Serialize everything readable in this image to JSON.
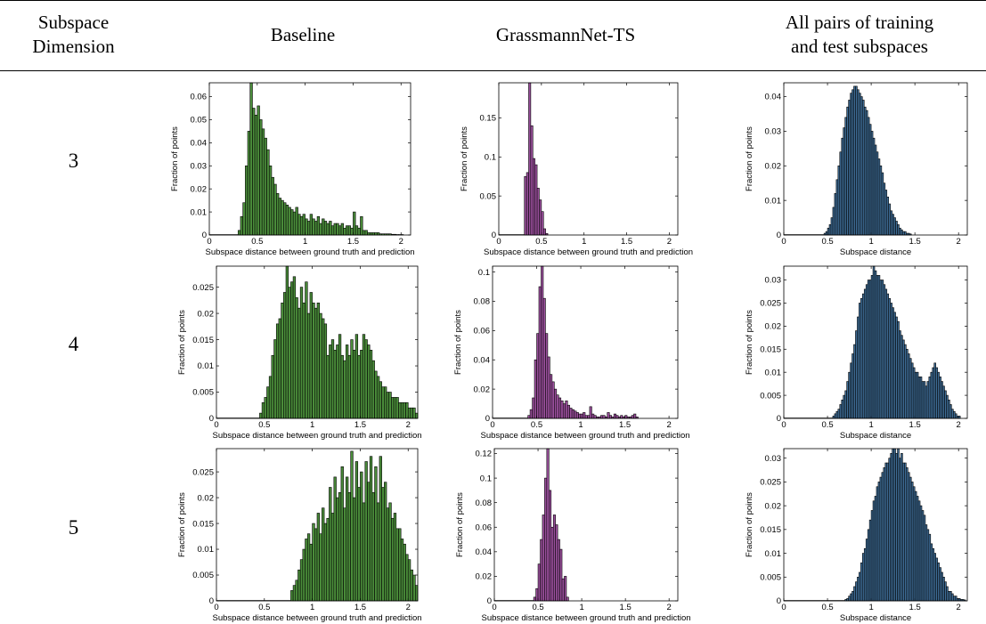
{
  "table": {
    "headers": {
      "dimension": [
        "Subspace",
        "Dimension"
      ],
      "baseline": "Baseline",
      "grassmann": "GrassmannNet-TS",
      "allpairs": [
        "All pairs of training",
        "and test subspaces"
      ]
    },
    "rows": [
      {
        "label": "3"
      },
      {
        "label": "4"
      },
      {
        "label": "5"
      }
    ]
  },
  "colors": {
    "baseline": "#4a8c3a",
    "grassmann": "#9a4f9c",
    "allpairs": "#3f6e98",
    "edge": "#000000"
  },
  "chart_data": [
    {
      "id": "b3",
      "type": "bar",
      "ylabel": "Fraction of points",
      "xlabel": "Subspace distance between ground truth and prediction",
      "xlim": [
        0,
        2.1
      ],
      "ylim": [
        0,
        0.066
      ],
      "xticks": [
        "0",
        "0.5",
        "1",
        "1.5",
        "2"
      ],
      "yticks": [
        "0",
        "0.01",
        "0.02",
        "0.03",
        "0.04",
        "0.05",
        "0.06"
      ],
      "bin_width": 0.025,
      "x": [
        0.3,
        0.325,
        0.35,
        0.375,
        0.4,
        0.425,
        0.45,
        0.475,
        0.5,
        0.525,
        0.55,
        0.575,
        0.6,
        0.625,
        0.65,
        0.675,
        0.7,
        0.725,
        0.75,
        0.775,
        0.8,
        0.825,
        0.85,
        0.875,
        0.9,
        0.925,
        0.95,
        0.975,
        1.0,
        1.025,
        1.05,
        1.075,
        1.1,
        1.125,
        1.15,
        1.175,
        1.2,
        1.225,
        1.25,
        1.275,
        1.3,
        1.325,
        1.35,
        1.375,
        1.4,
        1.425,
        1.45,
        1.475,
        1.5,
        1.525,
        1.55,
        1.575,
        1.6,
        1.625,
        1.65,
        1.675,
        1.7,
        1.725,
        1.75,
        1.775,
        1.8,
        1.825,
        1.85,
        1.875,
        1.9,
        1.925,
        1.95,
        1.975,
        2.0
      ],
      "values": [
        0.002,
        0.008,
        0.014,
        0.03,
        0.045,
        0.066,
        0.055,
        0.052,
        0.056,
        0.05,
        0.046,
        0.042,
        0.037,
        0.03,
        0.025,
        0.022,
        0.018,
        0.016,
        0.015,
        0.014,
        0.013,
        0.012,
        0.011,
        0.01,
        0.012,
        0.009,
        0.008,
        0.009,
        0.007,
        0.006,
        0.009,
        0.007,
        0.006,
        0.008,
        0.005,
        0.007,
        0.006,
        0.005,
        0.006,
        0.004,
        0.005,
        0.005,
        0.004,
        0.005,
        0.003,
        0.004,
        0.004,
        0.003,
        0.01,
        0.004,
        0.003,
        0.008,
        0.002,
        0.002,
        0.001,
        0.001,
        0.001,
        0.001,
        0.001,
        0.0005,
        0.0005,
        0.0005,
        0.0005,
        0.0005,
        0.0003,
        0.0003,
        0.0002,
        0.0002,
        0.0002
      ]
    },
    {
      "id": "g3",
      "type": "bar",
      "ylabel": "Fraction of points",
      "xlabel": "Subspace distance between ground truth and prediction",
      "xlim": [
        0,
        2.1
      ],
      "ylim": [
        0,
        0.195
      ],
      "xticks": [
        "0",
        "0.5",
        "1",
        "1.5",
        "2"
      ],
      "yticks": [
        "0",
        "0.05",
        "0.1",
        "0.15"
      ],
      "bin_width": 0.025,
      "x": [
        0.3,
        0.325,
        0.35,
        0.375,
        0.4,
        0.425,
        0.45,
        0.475,
        0.5,
        0.525,
        0.55
      ],
      "values": [
        0.075,
        0.08,
        0.195,
        0.14,
        0.098,
        0.09,
        0.06,
        0.045,
        0.03,
        0.008,
        0.002
      ]
    },
    {
      "id": "a3",
      "type": "bar",
      "ylabel": "Fraction of points",
      "xlabel": "Subspace distance",
      "xlim": [
        0,
        2.1
      ],
      "ylim": [
        0,
        0.044
      ],
      "xticks": [
        "0",
        "0.5",
        "1",
        "1.5",
        "2"
      ],
      "yticks": [
        "0",
        "0.01",
        "0.02",
        "0.03",
        "0.04"
      ],
      "bin_width": 0.02,
      "x": [
        0.46,
        0.48,
        0.5,
        0.52,
        0.54,
        0.56,
        0.58,
        0.6,
        0.62,
        0.64,
        0.66,
        0.68,
        0.7,
        0.72,
        0.74,
        0.76,
        0.78,
        0.8,
        0.82,
        0.84,
        0.86,
        0.88,
        0.9,
        0.92,
        0.94,
        0.96,
        0.98,
        1.0,
        1.02,
        1.04,
        1.06,
        1.08,
        1.1,
        1.12,
        1.14,
        1.16,
        1.18,
        1.2,
        1.22,
        1.24,
        1.26,
        1.28,
        1.3,
        1.32,
        1.34,
        1.36,
        1.38,
        1.4,
        1.42,
        1.44
      ],
      "values": [
        0.0005,
        0.001,
        0.002,
        0.003,
        0.005,
        0.008,
        0.012,
        0.016,
        0.02,
        0.024,
        0.028,
        0.031,
        0.034,
        0.037,
        0.039,
        0.041,
        0.042,
        0.043,
        0.043,
        0.042,
        0.041,
        0.04,
        0.039,
        0.037,
        0.036,
        0.034,
        0.032,
        0.03,
        0.028,
        0.026,
        0.024,
        0.022,
        0.02,
        0.018,
        0.015,
        0.013,
        0.011,
        0.009,
        0.007,
        0.006,
        0.005,
        0.004,
        0.003,
        0.002,
        0.0015,
        0.001,
        0.001,
        0.0005,
        0.0005,
        0.0003
      ]
    },
    {
      "id": "b4",
      "type": "bar",
      "ylabel": "Fraction of points",
      "xlabel": "Subspace distance between ground truth and prediction",
      "xlim": [
        0,
        2.1
      ],
      "ylim": [
        0,
        0.029
      ],
      "xticks": [
        "0",
        "0.5",
        "1",
        "1.5",
        "2"
      ],
      "yticks": [
        "0",
        "0.005",
        "0.01",
        "0.015",
        "0.02",
        "0.025"
      ],
      "bin_width": 0.025,
      "x": [
        0.45,
        0.475,
        0.5,
        0.525,
        0.55,
        0.575,
        0.6,
        0.625,
        0.65,
        0.675,
        0.7,
        0.725,
        0.75,
        0.775,
        0.8,
        0.825,
        0.85,
        0.875,
        0.9,
        0.925,
        0.95,
        0.975,
        1.0,
        1.025,
        1.05,
        1.075,
        1.1,
        1.125,
        1.15,
        1.175,
        1.2,
        1.225,
        1.25,
        1.275,
        1.3,
        1.325,
        1.35,
        1.375,
        1.4,
        1.425,
        1.45,
        1.475,
        1.5,
        1.525,
        1.55,
        1.575,
        1.6,
        1.625,
        1.65,
        1.675,
        1.7,
        1.725,
        1.75,
        1.775,
        1.8,
        1.825,
        1.85,
        1.875,
        1.9,
        1.925,
        1.95,
        1.975,
        2.0,
        2.025,
        2.05,
        2.075
      ],
      "values": [
        0.001,
        0.003,
        0.004,
        0.006,
        0.008,
        0.012,
        0.015,
        0.018,
        0.019,
        0.022,
        0.024,
        0.029,
        0.025,
        0.026,
        0.027,
        0.023,
        0.021,
        0.025,
        0.022,
        0.026,
        0.02,
        0.024,
        0.022,
        0.021,
        0.022,
        0.02,
        0.019,
        0.018,
        0.012,
        0.014,
        0.015,
        0.013,
        0.014,
        0.016,
        0.012,
        0.011,
        0.014,
        0.012,
        0.015,
        0.013,
        0.016,
        0.012,
        0.013,
        0.016,
        0.015,
        0.014,
        0.013,
        0.011,
        0.009,
        0.008,
        0.007,
        0.006,
        0.006,
        0.005,
        0.005,
        0.004,
        0.004,
        0.004,
        0.003,
        0.003,
        0.003,
        0.003,
        0.002,
        0.002,
        0.002,
        0.001
      ]
    },
    {
      "id": "g4",
      "type": "bar",
      "ylabel": "Fraction of points",
      "xlabel": "Subspace distance between ground truth and prediction",
      "xlim": [
        0,
        2.1
      ],
      "ylim": [
        0,
        0.104
      ],
      "xticks": [
        "0",
        "0.5",
        "1",
        "1.5",
        "2"
      ],
      "yticks": [
        "0",
        "0.02",
        "0.04",
        "0.06",
        "0.08",
        "0.1"
      ],
      "bin_width": 0.025,
      "x": [
        0.4,
        0.425,
        0.45,
        0.475,
        0.5,
        0.525,
        0.55,
        0.575,
        0.6,
        0.625,
        0.65,
        0.675,
        0.7,
        0.725,
        0.75,
        0.775,
        0.8,
        0.825,
        0.85,
        0.875,
        0.9,
        0.925,
        0.95,
        0.975,
        1.0,
        1.025,
        1.05,
        1.075,
        1.1,
        1.125,
        1.15,
        1.175,
        1.2,
        1.225,
        1.25,
        1.275,
        1.3,
        1.325,
        1.35,
        1.375,
        1.4,
        1.425,
        1.45,
        1.475,
        1.5,
        1.525,
        1.55,
        1.575,
        1.6,
        1.625
      ],
      "values": [
        0.002,
        0.006,
        0.014,
        0.04,
        0.058,
        0.09,
        0.104,
        0.082,
        0.058,
        0.042,
        0.03,
        0.025,
        0.02,
        0.016,
        0.014,
        0.012,
        0.01,
        0.012,
        0.009,
        0.007,
        0.006,
        0.005,
        0.004,
        0.003,
        0.003,
        0.004,
        0.002,
        0.002,
        0.008,
        0.003,
        0.002,
        0.001,
        0.001,
        0.002,
        0.002,
        0.001,
        0.004,
        0.002,
        0.001,
        0.003,
        0.002,
        0.001,
        0.002,
        0.001,
        0.002,
        0.001,
        0.001,
        0.002,
        0.003,
        0.001
      ]
    },
    {
      "id": "a4",
      "type": "bar",
      "ylabel": "Fraction of points",
      "xlabel": "Subspace distance",
      "xlim": [
        0,
        2.1
      ],
      "ylim": [
        0,
        0.033
      ],
      "xticks": [
        "0",
        "0.5",
        "1",
        "1.5",
        "2"
      ],
      "yticks": [
        "0",
        "0.005",
        "0.01",
        "0.015",
        "0.02",
        "0.025",
        "0.03"
      ],
      "bin_width": 0.02,
      "x": [
        0.56,
        0.58,
        0.6,
        0.62,
        0.64,
        0.66,
        0.68,
        0.7,
        0.72,
        0.74,
        0.76,
        0.78,
        0.8,
        0.82,
        0.84,
        0.86,
        0.88,
        0.9,
        0.92,
        0.94,
        0.96,
        0.98,
        1.0,
        1.02,
        1.04,
        1.06,
        1.08,
        1.1,
        1.12,
        1.14,
        1.16,
        1.18,
        1.2,
        1.22,
        1.24,
        1.26,
        1.28,
        1.3,
        1.32,
        1.34,
        1.36,
        1.38,
        1.4,
        1.42,
        1.44,
        1.46,
        1.48,
        1.5,
        1.52,
        1.54,
        1.56,
        1.58,
        1.6,
        1.62,
        1.64,
        1.66,
        1.68,
        1.7,
        1.72,
        1.74,
        1.76,
        1.78,
        1.8,
        1.82,
        1.84,
        1.86,
        1.88,
        1.9,
        1.92,
        1.94,
        1.96,
        1.98,
        2.0
      ],
      "values": [
        0.0005,
        0.001,
        0.0015,
        0.002,
        0.003,
        0.004,
        0.005,
        0.006,
        0.008,
        0.01,
        0.012,
        0.014,
        0.016,
        0.019,
        0.022,
        0.025,
        0.026,
        0.027,
        0.028,
        0.029,
        0.03,
        0.03,
        0.031,
        0.033,
        0.032,
        0.031,
        0.031,
        0.03,
        0.03,
        0.029,
        0.028,
        0.027,
        0.026,
        0.025,
        0.024,
        0.023,
        0.022,
        0.021,
        0.019,
        0.018,
        0.017,
        0.016,
        0.015,
        0.014,
        0.013,
        0.012,
        0.011,
        0.01,
        0.01,
        0.009,
        0.009,
        0.008,
        0.008,
        0.007,
        0.008,
        0.009,
        0.01,
        0.011,
        0.012,
        0.011,
        0.01,
        0.009,
        0.008,
        0.007,
        0.006,
        0.005,
        0.004,
        0.003,
        0.002,
        0.0015,
        0.001,
        0.0005,
        0.0005
      ]
    },
    {
      "id": "b5",
      "type": "bar",
      "ylabel": "Fraction of points",
      "xlabel": "Subspace distance between ground truth and prediction",
      "xlim": [
        0,
        2.1
      ],
      "ylim": [
        0,
        0.0295
      ],
      "xticks": [
        "0",
        "0.5",
        "1",
        "1.5",
        "2"
      ],
      "yticks": [
        "0",
        "0.005",
        "0.01",
        "0.015",
        "0.02",
        "0.025"
      ],
      "bin_width": 0.025,
      "x": [
        0.775,
        0.8,
        0.825,
        0.85,
        0.875,
        0.9,
        0.925,
        0.95,
        0.975,
        1.0,
        1.025,
        1.05,
        1.075,
        1.1,
        1.125,
        1.15,
        1.175,
        1.2,
        1.225,
        1.25,
        1.275,
        1.3,
        1.325,
        1.35,
        1.375,
        1.4,
        1.425,
        1.45,
        1.475,
        1.5,
        1.525,
        1.55,
        1.575,
        1.6,
        1.625,
        1.65,
        1.675,
        1.7,
        1.725,
        1.75,
        1.775,
        1.8,
        1.825,
        1.85,
        1.875,
        1.9,
        1.925,
        1.95,
        1.975,
        2.0,
        2.025,
        2.05,
        2.075
      ],
      "values": [
        0.002,
        0.003,
        0.004,
        0.006,
        0.008,
        0.01,
        0.012,
        0.013,
        0.011,
        0.015,
        0.014,
        0.017,
        0.013,
        0.018,
        0.015,
        0.016,
        0.022,
        0.017,
        0.024,
        0.02,
        0.021,
        0.026,
        0.018,
        0.024,
        0.021,
        0.029,
        0.02,
        0.027,
        0.022,
        0.025,
        0.019,
        0.027,
        0.023,
        0.028,
        0.021,
        0.026,
        0.019,
        0.028,
        0.022,
        0.023,
        0.018,
        0.019,
        0.016,
        0.017,
        0.014,
        0.014,
        0.012,
        0.011,
        0.009,
        0.008,
        0.006,
        0.005,
        0.003
      ]
    },
    {
      "id": "g5",
      "type": "bar",
      "ylabel": "Fraction of points",
      "xlabel": "Subspace distance between ground truth and prediction",
      "xlim": [
        0,
        2.1
      ],
      "ylim": [
        0,
        0.124
      ],
      "xticks": [
        "0",
        "0.5",
        "1",
        "1.5",
        "2"
      ],
      "yticks": [
        "0",
        "0.02",
        "0.04",
        "0.06",
        "0.08",
        "0.1",
        "0.12"
      ],
      "bin_width": 0.025,
      "x": [
        0.45,
        0.475,
        0.5,
        0.525,
        0.55,
        0.575,
        0.6,
        0.625,
        0.65,
        0.675,
        0.7,
        0.725,
        0.75,
        0.775,
        0.8,
        0.825
      ],
      "values": [
        0.003,
        0.01,
        0.03,
        0.05,
        0.07,
        0.1,
        0.124,
        0.09,
        0.06,
        0.07,
        0.062,
        0.05,
        0.042,
        0.018,
        0.02,
        0.003
      ]
    },
    {
      "id": "a5",
      "type": "bar",
      "ylabel": "Fraction of points",
      "xlabel": "Subspace distance",
      "xlim": [
        0,
        2.1
      ],
      "ylim": [
        0,
        0.032
      ],
      "xticks": [
        "0",
        "0.5",
        "1",
        "1.5",
        "2"
      ],
      "yticks": [
        "0",
        "0.005",
        "0.01",
        "0.015",
        "0.02",
        "0.025",
        "0.03"
      ],
      "bin_width": 0.02,
      "x": [
        0.7,
        0.72,
        0.74,
        0.76,
        0.78,
        0.8,
        0.82,
        0.84,
        0.86,
        0.88,
        0.9,
        0.92,
        0.94,
        0.96,
        0.98,
        1.0,
        1.02,
        1.04,
        1.06,
        1.08,
        1.1,
        1.12,
        1.14,
        1.16,
        1.18,
        1.2,
        1.22,
        1.24,
        1.26,
        1.28,
        1.3,
        1.32,
        1.34,
        1.36,
        1.38,
        1.4,
        1.42,
        1.44,
        1.46,
        1.48,
        1.5,
        1.52,
        1.54,
        1.56,
        1.58,
        1.6,
        1.62,
        1.64,
        1.66,
        1.68,
        1.7,
        1.72,
        1.74,
        1.76,
        1.78,
        1.8,
        1.82,
        1.84,
        1.86,
        1.88,
        1.9,
        1.92,
        1.94,
        1.96,
        1.98,
        2.0,
        2.02,
        2.04,
        2.06
      ],
      "values": [
        0.0003,
        0.0005,
        0.001,
        0.0015,
        0.002,
        0.003,
        0.004,
        0.005,
        0.006,
        0.008,
        0.01,
        0.011,
        0.013,
        0.015,
        0.017,
        0.019,
        0.021,
        0.022,
        0.024,
        0.025,
        0.026,
        0.027,
        0.028,
        0.029,
        0.029,
        0.03,
        0.031,
        0.032,
        0.032,
        0.031,
        0.032,
        0.03,
        0.031,
        0.029,
        0.029,
        0.028,
        0.027,
        0.026,
        0.025,
        0.024,
        0.023,
        0.022,
        0.021,
        0.02,
        0.019,
        0.018,
        0.016,
        0.015,
        0.014,
        0.012,
        0.011,
        0.01,
        0.009,
        0.008,
        0.007,
        0.006,
        0.005,
        0.004,
        0.003,
        0.002,
        0.002,
        0.0015,
        0.001,
        0.001,
        0.0005,
        0.0005,
        0.0003,
        0.0003,
        0.0002
      ]
    }
  ]
}
